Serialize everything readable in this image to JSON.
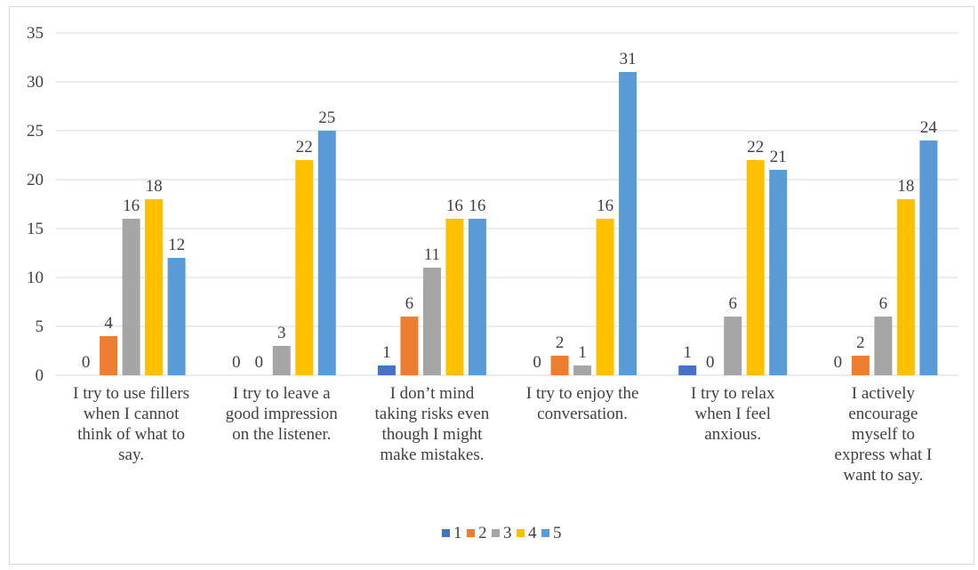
{
  "chart_data": {
    "type": "bar",
    "categories": [
      [
        "I try to use fillers",
        "when I cannot",
        "think of what to",
        "say."
      ],
      [
        "I try to leave a",
        "good impression",
        "on the listener."
      ],
      [
        "I don’t mind",
        "taking risks even",
        "though I might",
        "make mistakes."
      ],
      [
        "I try to enjoy the",
        "conversation."
      ],
      [
        "I try to relax",
        "when I feel",
        "anxious."
      ],
      [
        "I actively",
        "encourage",
        "myself to",
        "express what I",
        "want to say."
      ]
    ],
    "series": [
      {
        "name": "1",
        "color": "#4472c4",
        "values": [
          0,
          0,
          1,
          0,
          1,
          0
        ]
      },
      {
        "name": "2",
        "color": "#ed7d31",
        "values": [
          4,
          0,
          6,
          2,
          0,
          2
        ]
      },
      {
        "name": "3",
        "color": "#a5a5a5",
        "values": [
          16,
          3,
          11,
          1,
          6,
          6
        ]
      },
      {
        "name": "4",
        "color": "#ffc000",
        "values": [
          18,
          22,
          16,
          16,
          22,
          18
        ]
      },
      {
        "name": "5",
        "color": "#5b9bd5",
        "values": [
          12,
          25,
          16,
          31,
          21,
          24
        ]
      }
    ],
    "data_labels": [
      [
        "0",
        "4",
        "16",
        "18",
        "12"
      ],
      [
        "",
        "0",
        "0",
        "3",
        "22",
        "25"
      ],
      [
        "1",
        "6",
        "11",
        "16",
        "16"
      ],
      [
        "0",
        "2",
        "1",
        "16",
        "31"
      ],
      [
        "1",
        "0",
        "6",
        "22",
        "21"
      ],
      [
        "0",
        "2",
        "6",
        "18",
        "24"
      ]
    ],
    "label_slots": [
      [
        0,
        1,
        2,
        3,
        4
      ],
      [
        0,
        0,
        1,
        2,
        3,
        4
      ],
      [
        0,
        1,
        2,
        3,
        4
      ],
      [
        0,
        1,
        2,
        3,
        4
      ],
      [
        0,
        1,
        2,
        3,
        4
      ],
      [
        0,
        1,
        2,
        3,
        4
      ]
    ],
    "yticks": [
      0,
      5,
      10,
      15,
      20,
      25,
      30,
      35
    ],
    "ylim": [
      0,
      35
    ],
    "grid": true,
    "legend_position": "bottom"
  }
}
